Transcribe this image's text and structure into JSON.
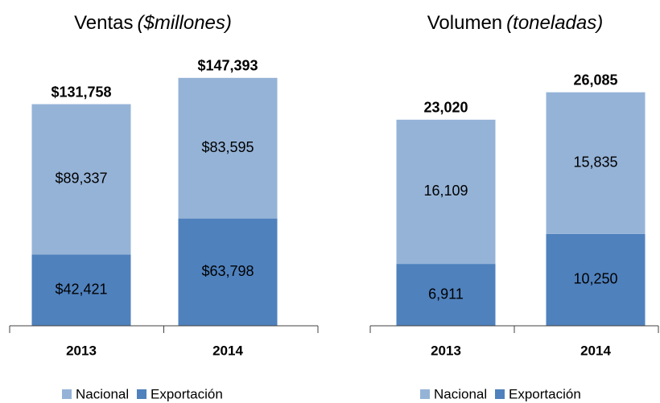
{
  "chart_data": [
    {
      "type": "bar",
      "stacked": true,
      "title": "Ventas",
      "subtitle": "($millones)",
      "categories": [
        "2013",
        "2014"
      ],
      "series": [
        {
          "name": "Exportación",
          "color": "#4f81bd",
          "values": [
            42421,
            63798
          ],
          "value_labels": [
            "$42,421",
            "$63,798"
          ]
        },
        {
          "name": "Nacional",
          "color": "#95b3d7",
          "values": [
            89337,
            83595
          ],
          "value_labels": [
            "$89,337",
            "$83,595"
          ]
        }
      ],
      "totals": [
        131758,
        147393
      ],
      "total_labels": [
        "$131,758",
        "$147,393"
      ],
      "ylim": [
        0,
        165000
      ]
    },
    {
      "type": "bar",
      "stacked": true,
      "title": "Volumen",
      "subtitle": "(toneladas)",
      "categories": [
        "2013",
        "2014"
      ],
      "series": [
        {
          "name": "Exportación",
          "color": "#4f81bd",
          "values": [
            6911,
            10250
          ],
          "value_labels": [
            "6,911",
            "10,250"
          ]
        },
        {
          "name": "Nacional",
          "color": "#95b3d7",
          "values": [
            16109,
            15835
          ],
          "value_labels": [
            "16,109",
            "15,835"
          ]
        }
      ],
      "totals": [
        23020,
        26085
      ],
      "total_labels": [
        "23,020",
        "26,085"
      ],
      "ylim": [
        0,
        31000
      ]
    }
  ]
}
